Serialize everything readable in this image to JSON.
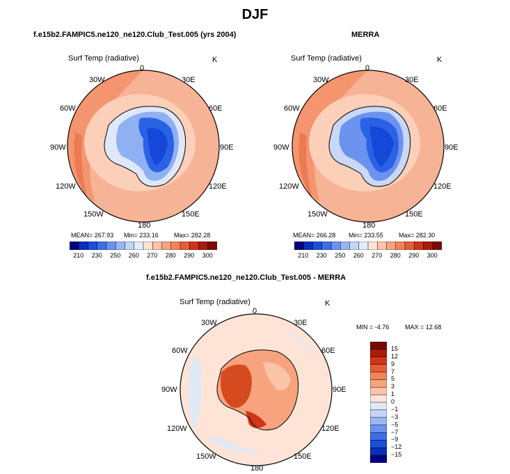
{
  "title": "DJF",
  "panels": {
    "left_title": "f.e15b2.FAMPIC5.ne120_ne120.Club_Test.005 (yrs 2004)",
    "right_title": "MERRA",
    "diff_title": "f.e15b2.FAMPIC5.ne120_ne120.Club_Test.005 - MERRA"
  },
  "map_label": "Surf Temp (radiative)",
  "units": "K",
  "lon_labels": [
    "0",
    "30E",
    "60E",
    "90E",
    "120E",
    "150E",
    "180",
    "150W",
    "120W",
    "90W",
    "60W",
    "30W"
  ],
  "stats": {
    "model": {
      "mean": "MEAN= 267.93",
      "min": "Min= 233.16",
      "max": "Max= 282.28"
    },
    "merra": {
      "mean": "MEAN= 266.28",
      "min": "Min= 233.55",
      "max": "Max= 282.30"
    },
    "diff": {
      "min": "MIN = -4.76",
      "max": "MAX = 12.68"
    }
  },
  "colorbar_abs": {
    "colors": [
      "#000080",
      "#0a2fb8",
      "#1b4fd8",
      "#3b6fe8",
      "#6b93ee",
      "#9ab6f2",
      "#c4d6f6",
      "#e4ecfa",
      "#fde4d6",
      "#fbc4a8",
      "#f7a47e",
      "#f18357",
      "#e65c36",
      "#cf3518",
      "#a81c0a",
      "#7a0a00"
    ],
    "labels": [
      "210",
      "230",
      "250",
      "260",
      "270",
      "280",
      "290",
      "300"
    ]
  },
  "colorbar_diff": {
    "colors": [
      "#7a0a00",
      "#a81c0a",
      "#cf3518",
      "#e65c36",
      "#f18357",
      "#f7a47e",
      "#fbc4a8",
      "#fde4d6",
      "#dfe9f8",
      "#c4d6f6",
      "#9ab6f2",
      "#6b93ee",
      "#3b6fe8",
      "#1b4fd8",
      "#0a2fb8",
      "#000080"
    ],
    "labels": [
      "15",
      "12",
      "9",
      "7",
      "5",
      "3",
      "1",
      "0",
      "-1",
      "-3",
      "-5",
      "-7",
      "-9",
      "-12",
      "-15"
    ]
  },
  "chart_data": [
    {
      "type": "heatmap",
      "projection": "south-polar-stereographic",
      "variable": "Surf Temp (radiative)",
      "units": "K",
      "title": "f.e15b2.FAMPIC5.ne120_ne120.Club_Test.005 (yrs 2004)",
      "mean": 267.93,
      "min": 233.16,
      "max": 282.28,
      "levels": [
        210,
        220,
        230,
        240,
        250,
        255,
        260,
        265,
        270,
        275,
        280,
        285,
        290,
        295,
        300
      ]
    },
    {
      "type": "heatmap",
      "projection": "south-polar-stereographic",
      "variable": "Surf Temp (radiative)",
      "units": "K",
      "title": "MERRA",
      "mean": 266.28,
      "min": 233.55,
      "max": 282.3,
      "levels": [
        210,
        220,
        230,
        240,
        250,
        255,
        260,
        265,
        270,
        275,
        280,
        285,
        290,
        295,
        300
      ]
    },
    {
      "type": "heatmap",
      "projection": "south-polar-stereographic",
      "variable": "Surf Temp (radiative)",
      "units": "K",
      "title": "f.e15b2.FAMPIC5.ne120_ne120.Club_Test.005 - MERRA",
      "min": -4.76,
      "max": 12.68,
      "levels": [
        -15,
        -12,
        -9,
        -7,
        -5,
        -3,
        -1,
        0,
        1,
        3,
        5,
        7,
        9,
        12,
        15
      ]
    }
  ]
}
